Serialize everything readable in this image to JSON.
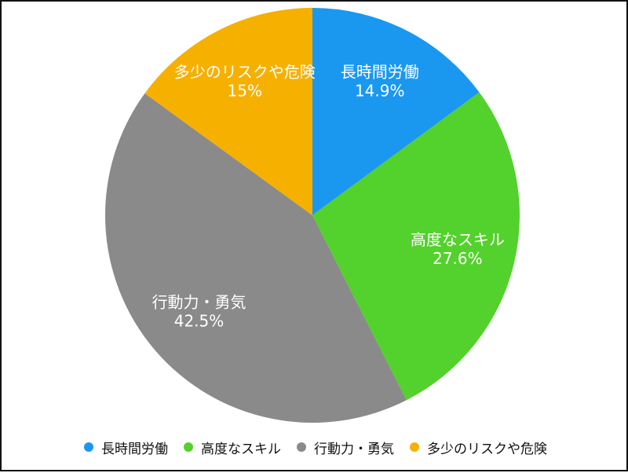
{
  "chart_data": {
    "type": "pie",
    "title": "",
    "slices": [
      {
        "label": "長時間労働",
        "value": 14.9,
        "value_label": "14.9%",
        "color": "#1a98f0"
      },
      {
        "label": "高度なスキル",
        "value": 27.6,
        "value_label": "27.6%",
        "color": "#53d12c"
      },
      {
        "label": "行動力・勇気",
        "value": 42.5,
        "value_label": "42.5%",
        "color": "#8a8a8a"
      },
      {
        "label": "多少のリスクや危険",
        "value": 15,
        "value_label": "15%",
        "color": "#f6b000"
      }
    ],
    "start_angle": "top",
    "direction": "clockwise",
    "legend_position": "bottom"
  }
}
